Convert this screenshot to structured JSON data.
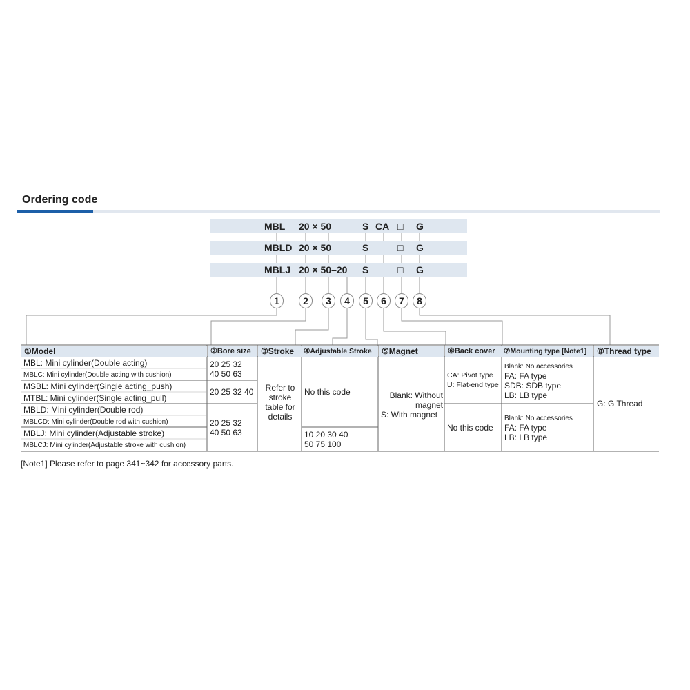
{
  "title": "Ordering code",
  "codes": [
    {
      "model": "MBL",
      "size": "20 × 50",
      "magnet": "S",
      "back": "CA",
      "mount": "□",
      "thread": "G"
    },
    {
      "model": "MBLD",
      "size": "20 × 50",
      "magnet": "S",
      "back": "",
      "mount": "□",
      "thread": "G"
    },
    {
      "model": "MBLJ",
      "size": "20 × 50–20",
      "magnet": "S",
      "back": "",
      "mount": "□",
      "thread": "G"
    }
  ],
  "markers": [
    "1",
    "2",
    "3",
    "4",
    "5",
    "6",
    "7",
    "8"
  ],
  "headers": [
    "①Model",
    "②Bore size",
    "③Stroke",
    "④Adjustable Stroke",
    "⑤Magnet",
    "⑥Back cover",
    "⑦Mounting type [Note1]",
    "⑧Thread type"
  ],
  "models": [
    "MBL: Mini cylinder(Double acting)",
    "MBLC: Mini cylinder(Double acting with cushion)",
    "MSBL: Mini cylinder(Single acting_push)",
    "MTBL: Mini cylinder(Single acting_pull)",
    "MBLD: Mini cylinder(Double rod)",
    "MBLCD: Mini cylinder(Double rod with cushion)",
    "MBLJ: Mini cylinder(Adjustable stroke)",
    "MBLCJ: Mini cylinder(Adjustable stroke with cushion)"
  ],
  "bore": [
    "20 25 32\n40 50 63",
    "20 25 32 40",
    "20 25 32\n40 50 63"
  ],
  "stroke": "Refer to stroke table for details",
  "adjustable": [
    "No this code",
    "10 20 30 40\n50 75 100"
  ],
  "magnet": [
    "Blank: Without magnet",
    "S: With magnet"
  ],
  "back_cover": [
    "CA: Pivot type\nU: Flat-end type",
    "No this code"
  ],
  "mounting": [
    "Blank: No accessories",
    "FA: FA type\nSDB: SDB type\nLB: LB type",
    "Blank: No accessories",
    "FA: FA type\nLB: LB type"
  ],
  "thread": "G: G Thread",
  "note": "[Note1]  Please refer to page 341~342 for accessory parts."
}
